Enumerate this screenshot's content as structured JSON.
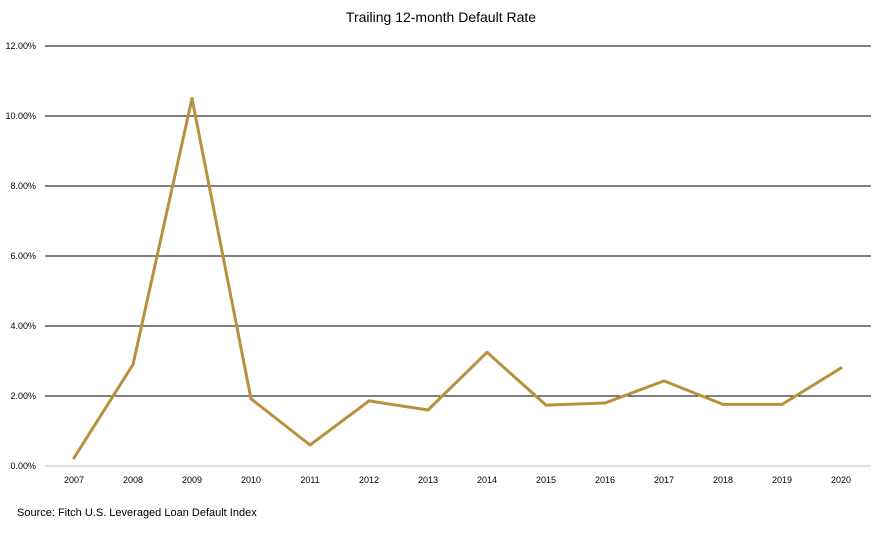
{
  "chart_data": {
    "type": "line",
    "title": "Trailing 12-month Default Rate",
    "xlabel": "",
    "ylabel": "",
    "categories": [
      "2007",
      "2008",
      "2009",
      "2010",
      "2011",
      "2012",
      "2013",
      "2014",
      "2015",
      "2016",
      "2017",
      "2018",
      "2019",
      "2020"
    ],
    "series": [
      {
        "values": [
          0.23,
          2.9,
          10.5,
          1.92,
          0.6,
          1.86,
          1.6,
          3.25,
          1.74,
          1.8,
          2.43,
          1.76,
          1.76,
          2.8
        ],
        "color": "#b8913d"
      }
    ],
    "ylim": [
      0,
      12
    ],
    "yticks": [
      {
        "value": 0,
        "label": "0.00%"
      },
      {
        "value": 2,
        "label": "2.00%"
      },
      {
        "value": 4,
        "label": "4.00%"
      },
      {
        "value": 6,
        "label": "6.00%"
      },
      {
        "value": 8,
        "label": "8.00%"
      },
      {
        "value": 10,
        "label": "10.00%"
      },
      {
        "value": 12,
        "label": "12.00%"
      }
    ],
    "grid": true,
    "legend": "none",
    "source": "Source: Fitch U.S. Leveraged Loan Default Index"
  }
}
